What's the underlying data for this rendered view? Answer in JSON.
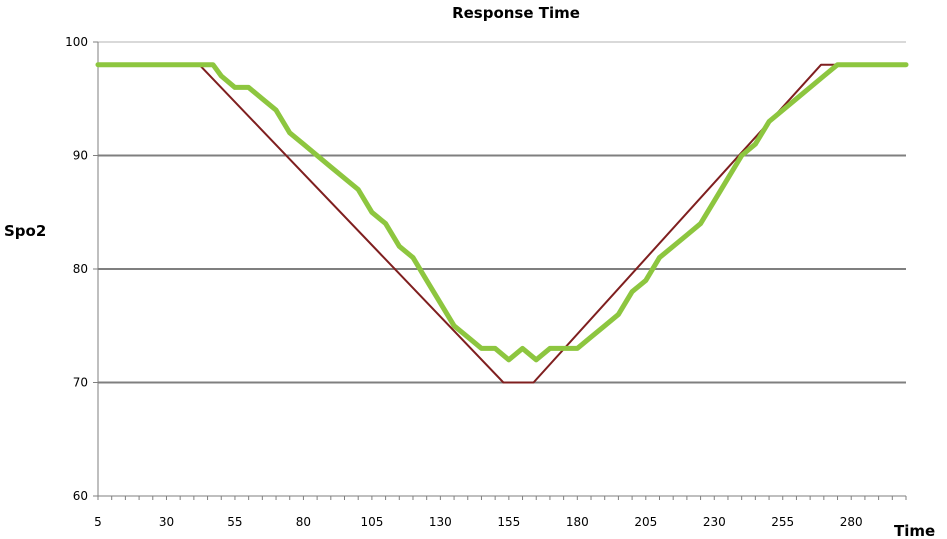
{
  "chart_data": {
    "type": "line",
    "title": "Response Time",
    "xlabel": "Time",
    "ylabel": "Spo2",
    "xlim": [
      5,
      300
    ],
    "ylim": [
      60,
      100
    ],
    "x_ticks": [
      5,
      30,
      55,
      80,
      105,
      130,
      155,
      180,
      205,
      230,
      255,
      280
    ],
    "y_ticks": [
      60,
      70,
      80,
      90,
      100
    ],
    "grid": "horizontal",
    "legend": "none",
    "series": [
      {
        "color": "#7f1f1f",
        "points": [
          [
            42,
            98
          ],
          [
            153,
            70
          ],
          [
            164,
            70
          ],
          [
            269,
            98
          ],
          [
            300,
            98
          ]
        ]
      },
      {
        "color": "#8dc63f",
        "points": [
          [
            5,
            98
          ],
          [
            47,
            98
          ],
          [
            50,
            97
          ],
          [
            55,
            96
          ],
          [
            60,
            96
          ],
          [
            65,
            95
          ],
          [
            70,
            94
          ],
          [
            75,
            92
          ],
          [
            80,
            91
          ],
          [
            90,
            89
          ],
          [
            100,
            87
          ],
          [
            105,
            85
          ],
          [
            110,
            84
          ],
          [
            115,
            82
          ],
          [
            120,
            81
          ],
          [
            125,
            79
          ],
          [
            130,
            77
          ],
          [
            135,
            75
          ],
          [
            140,
            74
          ],
          [
            145,
            73
          ],
          [
            150,
            73
          ],
          [
            155,
            72
          ],
          [
            160,
            73
          ],
          [
            165,
            72
          ],
          [
            170,
            73
          ],
          [
            180,
            73
          ],
          [
            185,
            74
          ],
          [
            190,
            75
          ],
          [
            195,
            76
          ],
          [
            200,
            78
          ],
          [
            205,
            79
          ],
          [
            210,
            81
          ],
          [
            220,
            83
          ],
          [
            225,
            84
          ],
          [
            230,
            86
          ],
          [
            235,
            88
          ],
          [
            240,
            90
          ],
          [
            245,
            91
          ],
          [
            250,
            93
          ],
          [
            260,
            95
          ],
          [
            270,
            97
          ],
          [
            275,
            98
          ],
          [
            300,
            98
          ]
        ]
      }
    ]
  }
}
